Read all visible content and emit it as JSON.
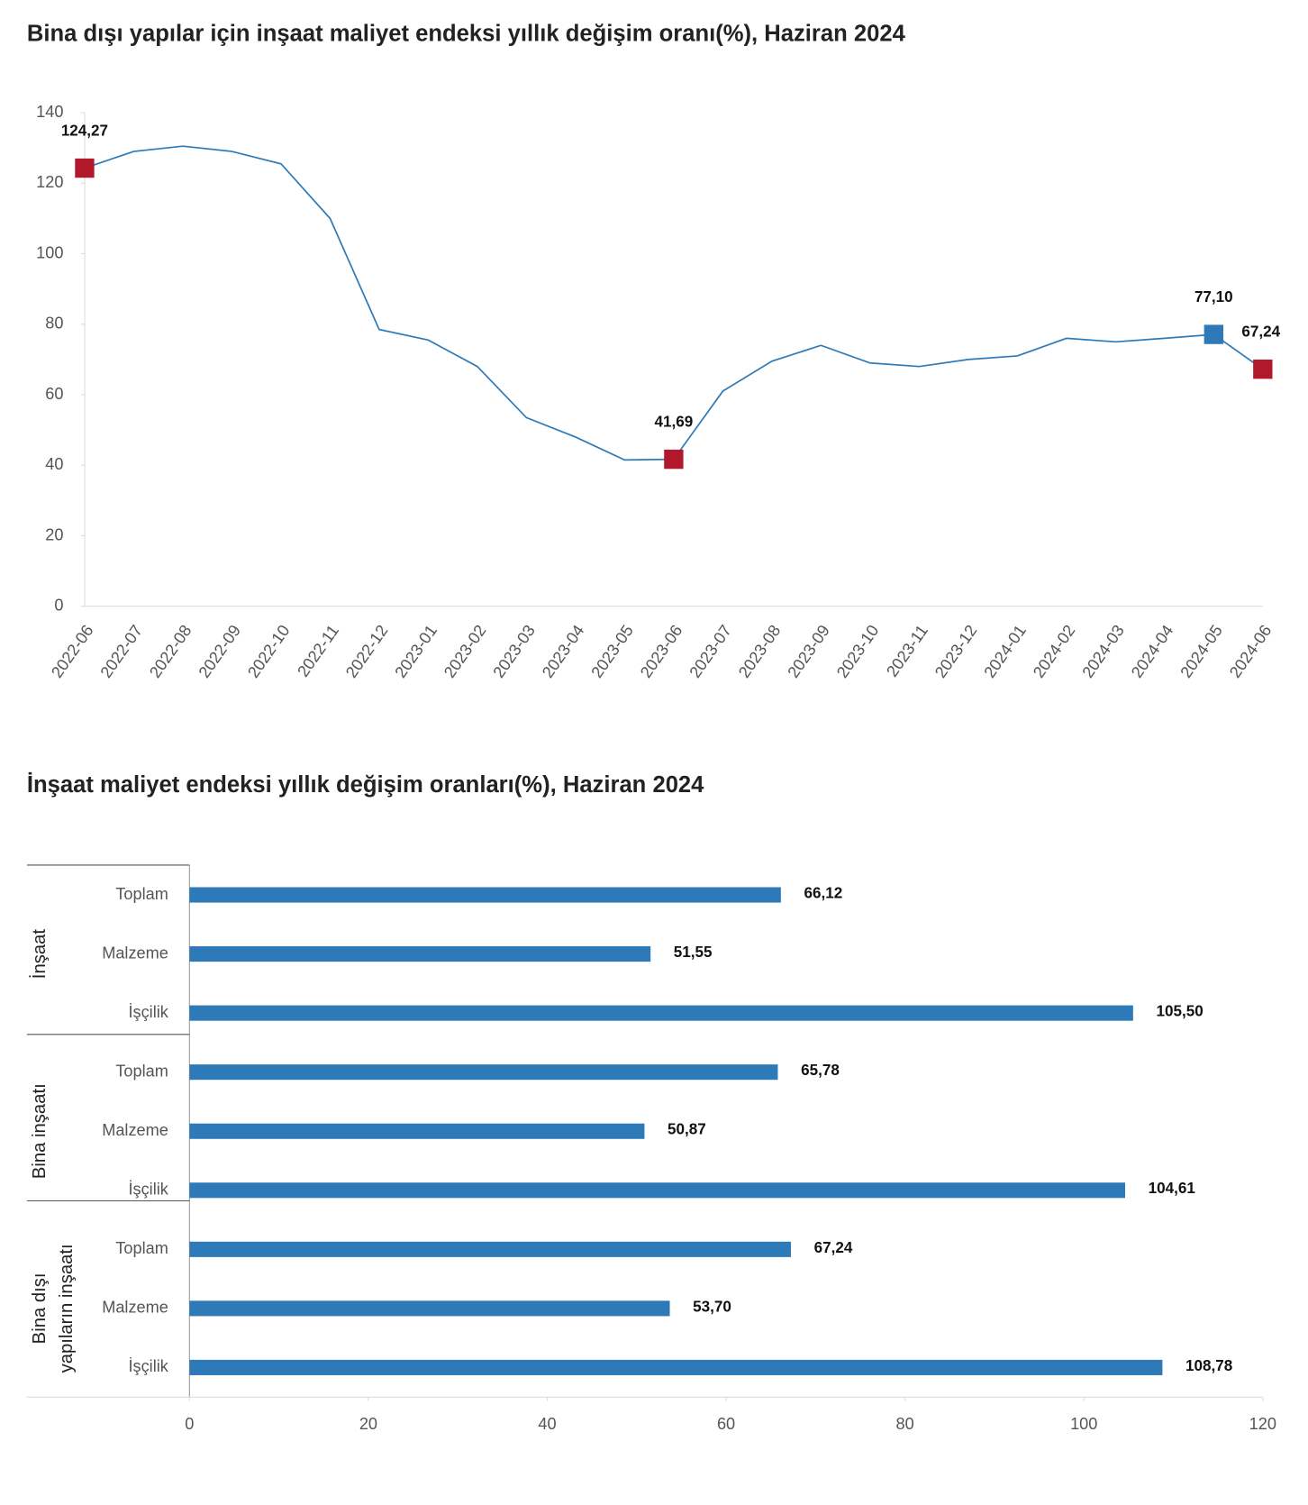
{
  "chart_data": [
    {
      "type": "line",
      "title": "Bina dışı yapılar için inşaat maliyet endeksi yıllık değişim oranı(%), Haziran 2024",
      "x": [
        "2022-06",
        "2022-07",
        "2022-08",
        "2022-09",
        "2022-10",
        "2022-11",
        "2022-12",
        "2023-01",
        "2023-02",
        "2023-03",
        "2023-04",
        "2023-05",
        "2023-06",
        "2023-07",
        "2023-08",
        "2023-09",
        "2023-10",
        "2023-11",
        "2023-12",
        "2024-01",
        "2024-02",
        "2024-03",
        "2024-04",
        "2024-05",
        "2024-06"
      ],
      "series": [
        {
          "color": "#2e7ab8",
          "values": [
            124.27,
            129,
            130.5,
            129,
            125.5,
            110,
            78.5,
            75.5,
            68,
            53.5,
            48,
            41.5,
            41.69,
            61,
            69.5,
            74,
            69,
            68,
            70,
            71,
            76,
            75,
            76,
            77.1,
            67.24
          ],
          "value_labels": [
            "124,27",
            null,
            null,
            null,
            null,
            null,
            null,
            null,
            null,
            null,
            null,
            null,
            "41,69",
            null,
            null,
            null,
            null,
            null,
            null,
            null,
            null,
            null,
            null,
            "77,10",
            "67,24"
          ],
          "marker_colors": [
            "#b2182b",
            null,
            null,
            null,
            null,
            null,
            null,
            null,
            null,
            null,
            null,
            null,
            "#b2182b",
            null,
            null,
            null,
            null,
            null,
            null,
            null,
            null,
            null,
            null,
            "#2e7ab8",
            "#b2182b"
          ]
        }
      ],
      "ylim": [
        0,
        140
      ],
      "yticks": [
        0,
        20,
        40,
        60,
        80,
        100,
        120,
        140
      ]
    },
    {
      "type": "hbar",
      "title": "İnşaat maliyet endeksi yıllık değişim oranları(%), Haziran 2024",
      "groups": [
        [
          "İnşaat"
        ],
        [
          "Bina inşaatı"
        ],
        [
          "Bina dışı",
          "yapıların inşaatı"
        ]
      ],
      "categories": [
        "Toplam",
        "Malzeme",
        "İşçilik",
        "Toplam",
        "Malzeme",
        "İşçilik",
        "Toplam",
        "Malzeme",
        "İşçilik"
      ],
      "values": [
        66.12,
        51.55,
        105.5,
        65.78,
        50.87,
        104.61,
        67.24,
        53.7,
        108.78
      ],
      "value_labels": [
        "66,12",
        "51,55",
        "105,50",
        "65,78",
        "50,87",
        "104,61",
        "67,24",
        "53,70",
        "108,78"
      ],
      "color": "#2e7ab8",
      "xlim": [
        0,
        120
      ],
      "xticks": [
        0,
        20,
        40,
        60,
        80,
        100,
        120
      ]
    }
  ]
}
